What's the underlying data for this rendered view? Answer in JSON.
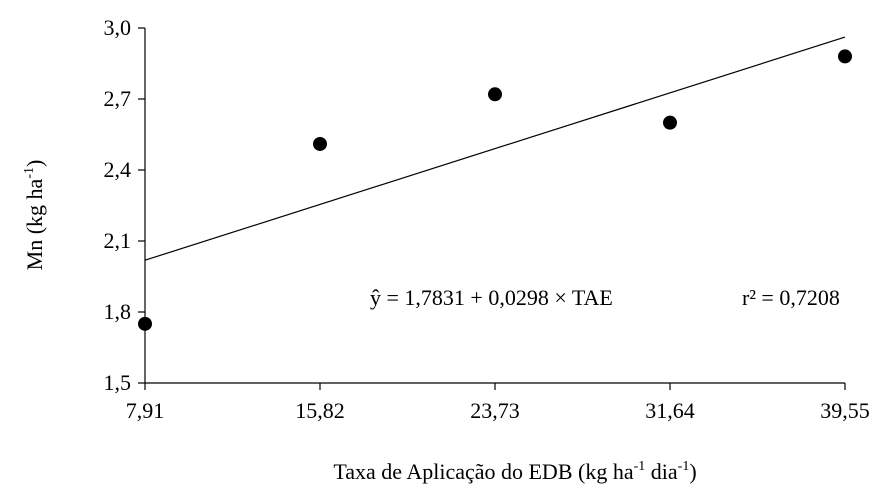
{
  "chart_data": {
    "type": "scatter",
    "title": "",
    "xlabel": "Taxa de Aplicação do EDB  (kg ha",
    "xlabel_sup1": "-1",
    "xlabel_mid": " dia",
    "xlabel_sup2": "-1",
    "xlabel_end": ")",
    "ylabel": "Mn (kg ha",
    "ylabel_sup": "-1",
    "ylabel_end": ")",
    "x_ticks": [
      "7,91",
      "15,82",
      "23,73",
      "31,64",
      "39,55"
    ],
    "x_tick_values": [
      7.91,
      15.82,
      23.73,
      31.64,
      39.55
    ],
    "y_ticks": [
      "1,5",
      "1,8",
      "2,1",
      "2,4",
      "2,7",
      "3,0"
    ],
    "y_tick_values": [
      1.5,
      1.8,
      2.1,
      2.4,
      2.7,
      3.0
    ],
    "xlim": [
      7.91,
      39.55
    ],
    "ylim": [
      1.5,
      3.0
    ],
    "grid": false,
    "points": [
      {
        "x": 7.91,
        "y": 1.75
      },
      {
        "x": 15.82,
        "y": 2.51
      },
      {
        "x": 23.73,
        "y": 2.72
      },
      {
        "x": 31.64,
        "y": 2.6
      },
      {
        "x": 39.55,
        "y": 2.88
      }
    ],
    "trendline": {
      "intercept": 1.7831,
      "slope": 0.0298
    },
    "equation": "ŷ = 1,7831 + 0,0298 × TAE",
    "r2": "r² = 0,7208",
    "colors": {
      "points": "#000000",
      "line": "#000000",
      "axis": "#000000"
    }
  }
}
